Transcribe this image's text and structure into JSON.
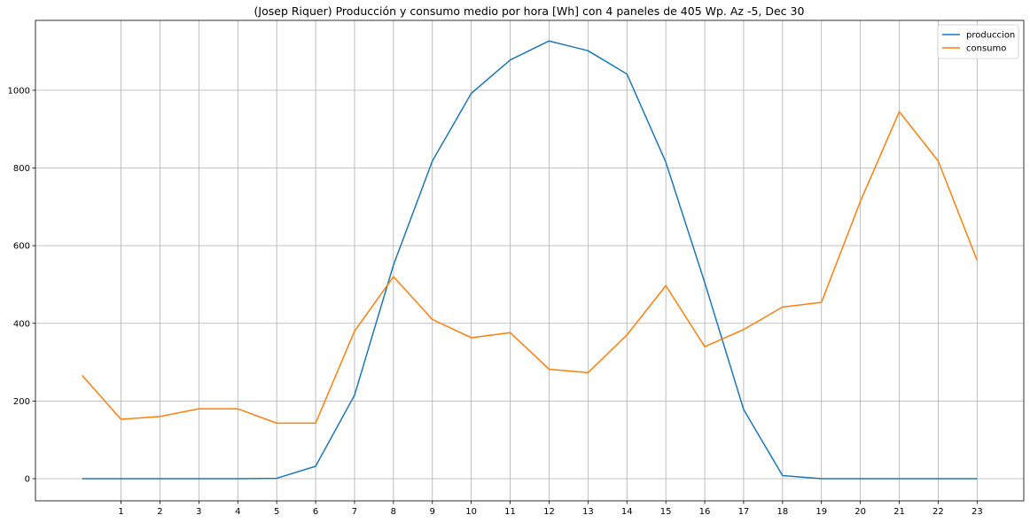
{
  "chart_data": {
    "type": "line",
    "title": "(Josep Riquer) Producción y consumo medio por hora [Wh] con 4 paneles de 405 Wp. Az -5, Dec 30",
    "xlabel": "",
    "ylabel": "",
    "x": [
      0,
      1,
      2,
      3,
      4,
      5,
      6,
      7,
      8,
      9,
      10,
      11,
      12,
      13,
      14,
      15,
      16,
      17,
      18,
      19,
      20,
      21,
      22,
      23
    ],
    "x_tick_labels": [
      "1",
      "2",
      "3",
      "4",
      "5",
      "6",
      "7",
      "8",
      "9",
      "10",
      "11",
      "12",
      "13",
      "14",
      "15",
      "16",
      "17",
      "18",
      "19",
      "20",
      "21",
      "22",
      "23"
    ],
    "y_tick_values": [
      0,
      200,
      400,
      600,
      800,
      1000
    ],
    "y_tick_labels": [
      "0",
      "200",
      "400",
      "600",
      "800",
      "1000"
    ],
    "xlim": [
      -1.2,
      24.2
    ],
    "ylim": [
      -57,
      1180
    ],
    "grid": true,
    "legend_position": "top-right",
    "series": [
      {
        "name": "produccion",
        "color": "#1f77b4",
        "values": [
          0,
          0,
          0,
          0,
          0,
          1,
          32,
          215,
          550,
          818,
          992,
          1078,
          1127,
          1102,
          1042,
          815,
          505,
          178,
          8,
          0,
          0,
          0,
          0,
          0
        ]
      },
      {
        "name": "consumo",
        "color": "#ff7f0e",
        "values": [
          266,
          153,
          160,
          180,
          180,
          143,
          143,
          380,
          520,
          410,
          363,
          376,
          282,
          273,
          370,
          497,
          340,
          384,
          442,
          454,
          714,
          945,
          818,
          562
        ]
      }
    ]
  }
}
